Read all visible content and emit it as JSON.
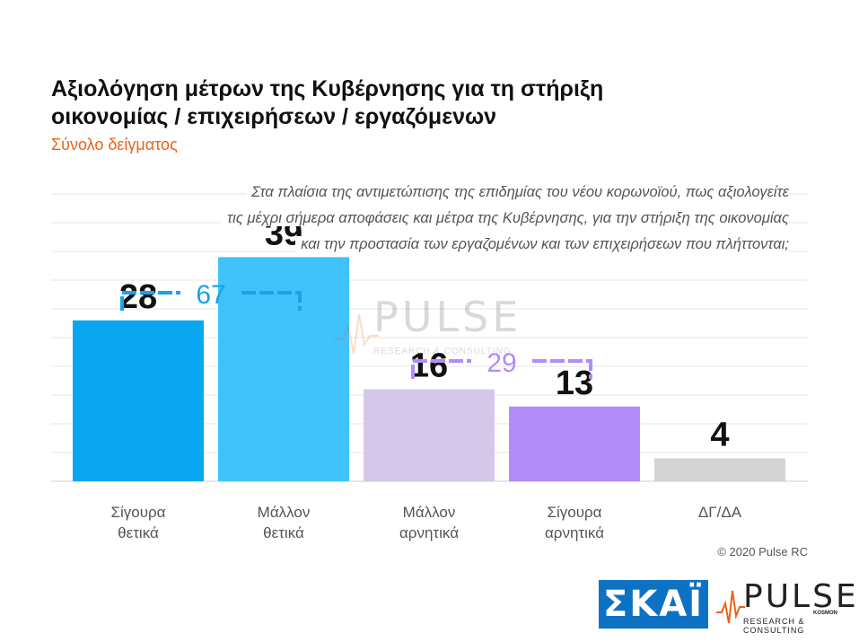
{
  "header": {
    "title": "Αξιολόγηση μέτρων της Κυβέρνησης για τη στήριξη οικονομίας / επιχειρήσεων / εργαζόμενων",
    "subtitle": "Σύνολο δείγματος"
  },
  "question": {
    "lines": [
      "Στα πλαίσια της αντιμετώπισης της επιδημίας του νέου κορωνοϊού, πως αξιολογείτε",
      "τις μέχρι σήμερα αποφάσεις και μέτρα της Κυβέρνησης, για την στήριξη της οικονομίας",
      "και την προστασία των εργαζομένων και των επιχειρήσεων που πλήττονται;"
    ]
  },
  "chart_data": {
    "type": "bar",
    "categories": [
      [
        "Σίγουρα",
        "θετικά"
      ],
      [
        "Μάλλον",
        "θετικά"
      ],
      [
        "Μάλλον",
        "αρνητικά"
      ],
      [
        "Σίγουρα",
        "αρνητικά"
      ],
      [
        "ΔΓ/ΔΑ"
      ]
    ],
    "values": [
      28,
      39,
      16,
      13,
      4
    ],
    "value_labels": [
      "28",
      "39",
      "16",
      "13",
      "4"
    ],
    "colors": [
      "#0aa7f0",
      "#40c2fb",
      "#d5c7ea",
      "#b28cf8",
      "#d4d4d4"
    ],
    "ylim": [
      0,
      50
    ],
    "grid": true,
    "groups": [
      {
        "label": "67",
        "from": 0,
        "to": 1,
        "color": "#1aa3e8"
      },
      {
        "label": "29",
        "from": 2,
        "to": 3,
        "color": "#b28cf8"
      }
    ]
  },
  "footer": {
    "copyright": "© 2020 Pulse RC",
    "skai_logo": "ΣΚΑΪ",
    "pulse_logo": "PULSE",
    "pulse_tagline": "RESEARCH & CONSULTING",
    "pulse_kosmon": "KOSMON"
  },
  "watermark": {
    "word": "PULSE",
    "tagline": "RESEARCH & CONSULTING"
  }
}
